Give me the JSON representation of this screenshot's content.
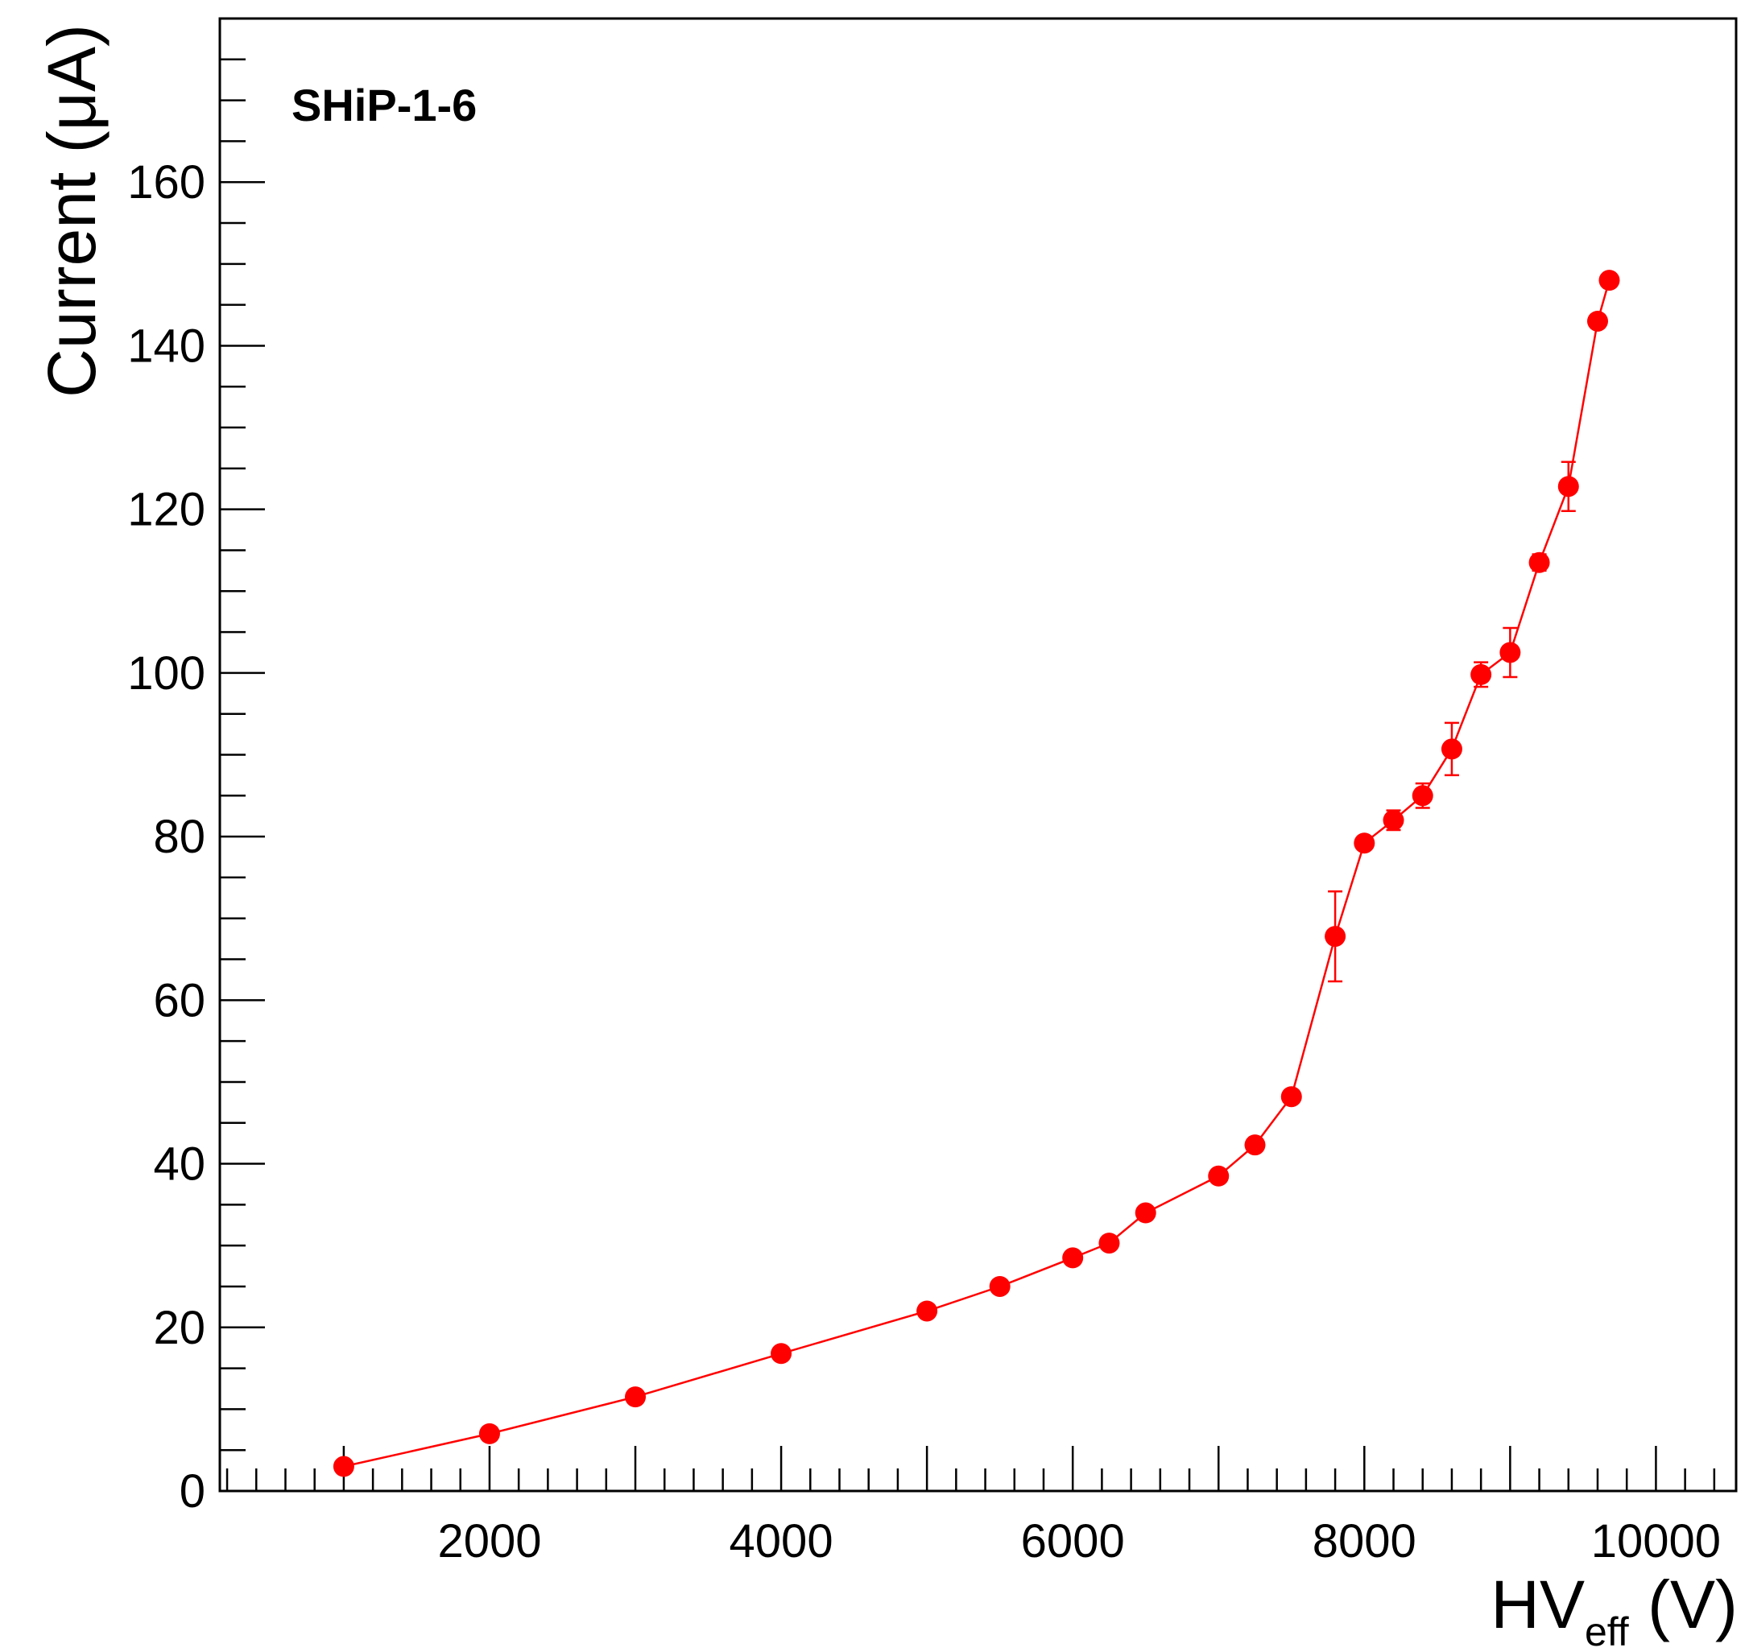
{
  "chart_data": {
    "type": "scatter",
    "annotation": "SHiP-1-6",
    "xlabel": {
      "main": "HV",
      "sub": "eff",
      "unit": " (V)"
    },
    "ylabel": "Current (μA)",
    "xlim": [
      150,
      10550
    ],
    "ylim": [
      0,
      180
    ],
    "x_ticks": [
      2000,
      4000,
      6000,
      8000,
      10000
    ],
    "y_ticks": [
      0,
      20,
      40,
      60,
      80,
      100,
      120,
      140,
      160
    ],
    "grid": false,
    "color": "#ff0000",
    "series": [
      {
        "points": [
          {
            "x": 1000,
            "y": 3.0,
            "err": 0
          },
          {
            "x": 2000,
            "y": 7.0,
            "err": 0
          },
          {
            "x": 3000,
            "y": 11.5,
            "err": 0
          },
          {
            "x": 4000,
            "y": 16.8,
            "err": 0
          },
          {
            "x": 5000,
            "y": 22.0,
            "err": 0
          },
          {
            "x": 5500,
            "y": 25.0,
            "err": 0
          },
          {
            "x": 6000,
            "y": 28.5,
            "err": 0
          },
          {
            "x": 6250,
            "y": 30.3,
            "err": 0
          },
          {
            "x": 6500,
            "y": 34.0,
            "err": 0
          },
          {
            "x": 7000,
            "y": 38.5,
            "err": 0
          },
          {
            "x": 7250,
            "y": 42.3,
            "err": 0
          },
          {
            "x": 7500,
            "y": 48.2,
            "err": 0
          },
          {
            "x": 7800,
            "y": 67.8,
            "err": 5.5
          },
          {
            "x": 8000,
            "y": 79.2,
            "err": 0
          },
          {
            "x": 8200,
            "y": 82.0,
            "err": 1.2
          },
          {
            "x": 8400,
            "y": 85.0,
            "err": 1.5
          },
          {
            "x": 8600,
            "y": 90.7,
            "err": 3.2
          },
          {
            "x": 8800,
            "y": 99.8,
            "err": 1.5
          },
          {
            "x": 9000,
            "y": 102.5,
            "err": 3.0
          },
          {
            "x": 9200,
            "y": 113.5,
            "err": 1.0
          },
          {
            "x": 9400,
            "y": 122.8,
            "err": 3.0
          },
          {
            "x": 9600,
            "y": 143.0,
            "err": 0
          },
          {
            "x": 9680,
            "y": 148.0,
            "err": 0
          }
        ]
      }
    ]
  }
}
